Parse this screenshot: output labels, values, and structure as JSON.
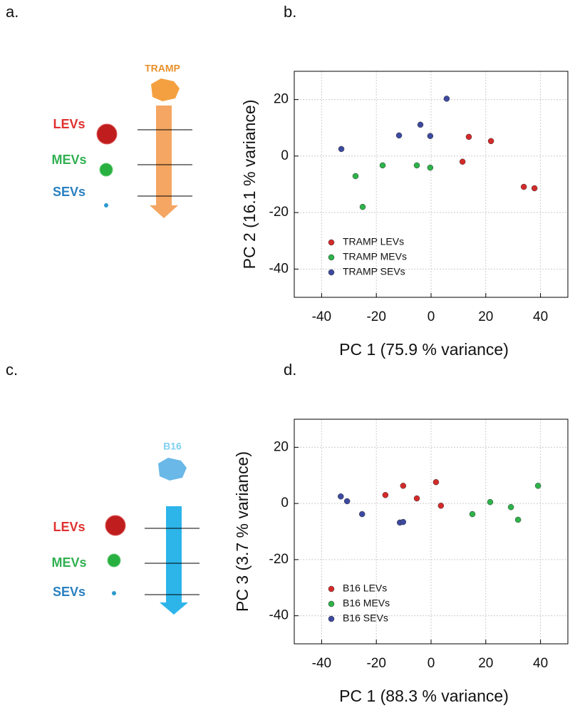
{
  "panel_labels": [
    "a.",
    "b.",
    "c.",
    "d."
  ],
  "diagrams": [
    {
      "cell": "TRAMP",
      "labels": [
        "LEVs",
        "MEVs",
        "SEVs"
      ]
    },
    {
      "cell": "B16",
      "labels": [
        "LEVs",
        "MEVs",
        "SEVs"
      ]
    }
  ],
  "chart_data": [
    {
      "type": "scatter",
      "xlabel": "PC 1 (75.9 % variance)",
      "ylabel": "PC 2 (16.1 % variance)",
      "xlim": [
        -50,
        50
      ],
      "ylim": [
        -50,
        30
      ],
      "xticks": [
        -40,
        -20,
        0,
        20,
        40
      ],
      "yticks": [
        -40,
        -20,
        0,
        20
      ],
      "grid": true,
      "legend": "lower left",
      "series": [
        {
          "name": "TRAMP LEVs",
          "color": "#d42a2a",
          "x": [
            13.8,
            21.9,
            11.5,
            33.9,
            37.8
          ],
          "values": [
            6.8,
            5.3,
            -2,
            -10.9,
            -11.4
          ]
        },
        {
          "name": "TRAMP MEVs",
          "color": "#2db34a",
          "x": [
            -27.6,
            -25,
            -17.7,
            -5.2,
            -0.3
          ],
          "values": [
            -7.1,
            -18,
            -3.3,
            -3.3,
            -4.1
          ]
        },
        {
          "name": "TRAMP SEVs",
          "color": "#3d4aa0",
          "x": [
            -32.8,
            -11.7,
            -3.9,
            -0.3,
            5.7
          ],
          "values": [
            2.5,
            7.3,
            11.1,
            7.1,
            20.3
          ]
        }
      ]
    },
    {
      "type": "scatter",
      "xlabel": "PC 1 (88.3 % variance)",
      "ylabel": "PC 3 (3.7 % variance)",
      "xlim": [
        -50,
        50
      ],
      "ylim": [
        -50,
        30
      ],
      "xticks": [
        -40,
        -20,
        0,
        20,
        40
      ],
      "yticks": [
        -40,
        -20,
        0,
        20
      ],
      "grid": true,
      "legend": "lower left",
      "series": [
        {
          "name": "B16 LEVs",
          "color": "#d42a2a",
          "x": [
            -16.7,
            -10.2,
            -5.2,
            1.8,
            3.6
          ],
          "values": [
            3,
            6.3,
            1.8,
            7.6,
            -0.8
          ]
        },
        {
          "name": "B16 MEVs",
          "color": "#2db34a",
          "x": [
            15.1,
            21.6,
            29.2,
            31.8,
            39.1
          ],
          "values": [
            -3.8,
            0.5,
            -1.3,
            -5.8,
            6.3
          ]
        },
        {
          "name": "B16 SEVs",
          "color": "#3d4aa0",
          "x": [
            -33,
            -30.7,
            -25.2,
            -11.4,
            -10.2
          ],
          "values": [
            2.5,
            0.8,
            -3.8,
            -6.8,
            -6.6
          ]
        }
      ]
    }
  ]
}
